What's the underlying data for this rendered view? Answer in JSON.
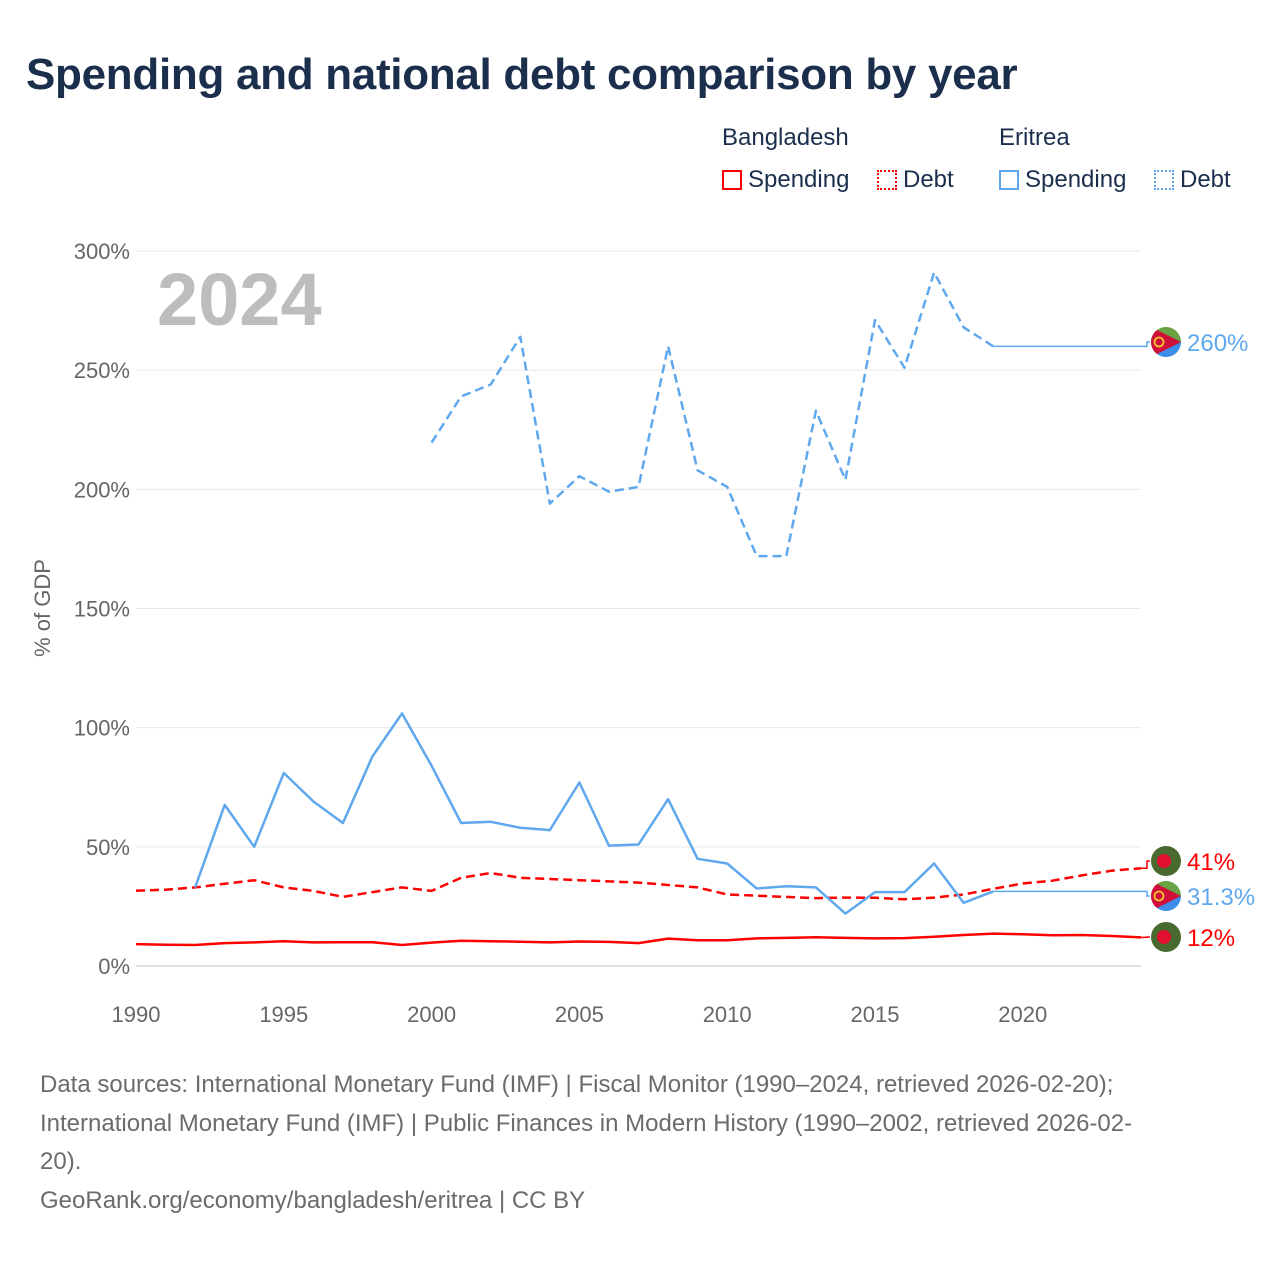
{
  "title": "Spending and national debt comparison by year",
  "legend": {
    "groups": [
      {
        "name": "Bangladesh",
        "items": [
          "Spending",
          "Debt"
        ],
        "color": "#ff0000"
      },
      {
        "name": "Eritrea",
        "items": [
          "Spending",
          "Debt"
        ],
        "color": "#5fa8ee"
      }
    ]
  },
  "footer": {
    "line1": "Data sources: International Monetary Fund (IMF) | Fiscal Monitor (1990–2024, retrieved 2026-02-20);",
    "line2": "International Monetary Fund (IMF) | Public Finances in Modern History (1990–2002, retrieved 2026-02-",
    "line3": "20).",
    "line4": "GeoRank.org/economy/bangladesh/eritrea | CC BY"
  },
  "chart_data": {
    "type": "line",
    "title": "Spending and national debt comparison by year",
    "xlabel": "",
    "ylabel": "% of GDP",
    "year_watermark": "2024",
    "xlim": [
      1990,
      2024
    ],
    "ylim": [
      0,
      300
    ],
    "x_ticks": [
      1990,
      1995,
      2000,
      2005,
      2010,
      2015,
      2020
    ],
    "y_ticks": [
      0,
      50,
      100,
      150,
      200,
      250,
      300
    ],
    "y_tick_labels": [
      "0%",
      "50%",
      "100%",
      "150%",
      "200%",
      "250%",
      "300%"
    ],
    "grid": true,
    "legend_position": "top-right",
    "series": [
      {
        "name": "Bangladesh Spending",
        "country": "Bangladesh",
        "color": "#ff0000",
        "dash": false,
        "end_label": "12%",
        "x": [
          1990,
          1991,
          1992,
          1993,
          1994,
          1995,
          1996,
          1997,
          1998,
          1999,
          2000,
          2001,
          2002,
          2003,
          2004,
          2005,
          2006,
          2007,
          2008,
          2009,
          2010,
          2011,
          2012,
          2013,
          2014,
          2015,
          2016,
          2017,
          2018,
          2019,
          2020,
          2021,
          2022,
          2023,
          2024
        ],
        "values": [
          9.2,
          8.9,
          8.8,
          9.6,
          9.9,
          10.4,
          9.9,
          10,
          10,
          8.8,
          9.8,
          10.6,
          10.4,
          10.2,
          9.9,
          10.3,
          10.1,
          9.6,
          11.5,
          10.8,
          10.8,
          11.6,
          11.8,
          12.1,
          11.8,
          11.6,
          11.7,
          12.3,
          13,
          13.6,
          13.3,
          12.9,
          13,
          12.6,
          12
        ]
      },
      {
        "name": "Bangladesh Debt",
        "country": "Bangladesh",
        "color": "#ff0000",
        "dash": true,
        "end_label": "41%",
        "x": [
          1990,
          1991,
          1992,
          1993,
          1994,
          1995,
          1996,
          1997,
          1998,
          1999,
          2000,
          2001,
          2002,
          2003,
          2004,
          2005,
          2006,
          2007,
          2008,
          2009,
          2010,
          2011,
          2012,
          2013,
          2014,
          2015,
          2016,
          2017,
          2018,
          2019,
          2020,
          2021,
          2022,
          2023,
          2024
        ],
        "values": [
          31.6,
          32,
          33,
          34.5,
          36,
          33,
          31.5,
          29,
          31,
          33,
          31.5,
          37,
          39,
          37,
          36.5,
          36,
          35.5,
          35,
          34,
          33,
          30,
          29.5,
          29,
          28.5,
          28.7,
          28.6,
          28,
          28.7,
          30,
          32.4,
          34.6,
          35.8,
          38,
          40,
          41
        ]
      },
      {
        "name": "Eritrea Spending",
        "country": "Eritrea",
        "color": "#5fa8ee",
        "dash": false,
        "end_label": "31.3%",
        "x": [
          1992,
          1993,
          1994,
          1995,
          1996,
          1997,
          1998,
          1999,
          2000,
          2001,
          2002,
          2003,
          2004,
          2005,
          2006,
          2007,
          2008,
          2009,
          2010,
          2011,
          2012,
          2013,
          2014,
          2015,
          2016,
          2017,
          2018,
          2019
        ],
        "values": [
          33,
          67.6,
          50,
          81,
          69,
          60,
          88,
          106,
          84,
          60,
          60.5,
          58,
          57,
          77,
          50.5,
          51,
          70,
          45,
          43,
          32.5,
          33.5,
          33,
          22,
          31,
          31,
          43,
          26.5,
          31.3
        ]
      },
      {
        "name": "Eritrea Debt",
        "country": "Eritrea",
        "color": "#5fa8ee",
        "dash": true,
        "end_label": "260%",
        "x": [
          2000,
          2001,
          2002,
          2003,
          2004,
          2005,
          2006,
          2007,
          2008,
          2009,
          2010,
          2011,
          2012,
          2013,
          2014,
          2015,
          2016,
          2017,
          2018,
          2019
        ],
        "values": [
          219.6,
          239,
          244,
          264,
          194,
          205.5,
          199,
          201,
          260,
          208,
          201,
          172,
          172,
          233,
          204,
          271,
          251,
          291,
          268,
          260
        ]
      }
    ]
  }
}
